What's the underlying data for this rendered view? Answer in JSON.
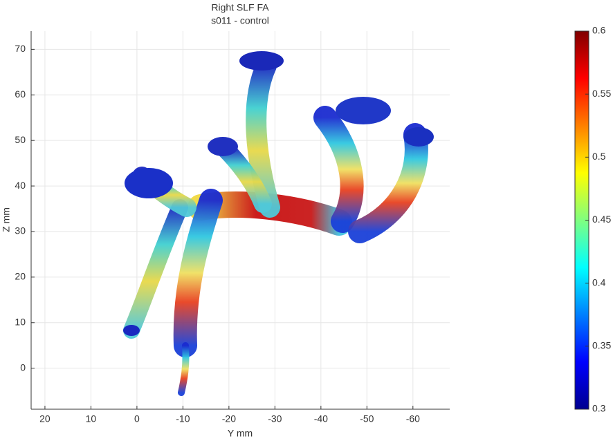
{
  "chart_data": {
    "type": "image",
    "title": "Right SLF FA",
    "subtitle": "s011 - control",
    "xlabel": "Y mm",
    "ylabel": "Z mm",
    "xlim": [
      23,
      -68
    ],
    "xticks": [
      20,
      10,
      0,
      -10,
      -20,
      -30,
      -40,
      -50,
      -60
    ],
    "ylim": [
      -9,
      74
    ],
    "yticks": [
      0,
      10,
      20,
      30,
      40,
      50,
      60,
      70
    ],
    "grid": true,
    "colorbar": {
      "colormap": "jet",
      "clim": [
        0.3,
        0.6
      ],
      "ticks": [
        0.3,
        0.35,
        0.4,
        0.45,
        0.5,
        0.55,
        0.6
      ]
    }
  }
}
